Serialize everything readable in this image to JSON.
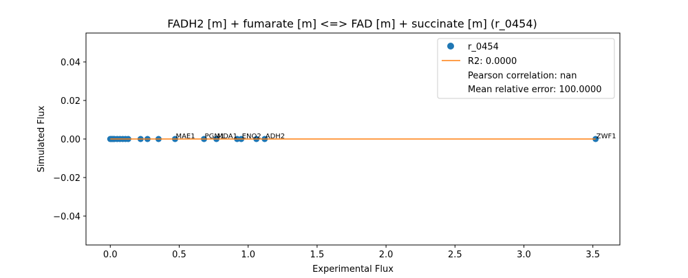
{
  "chart_data": {
    "type": "scatter",
    "title": "FADH2 [m] + fumarate [m] <=> FAD [m] + succinate [m] (r_0454)",
    "xlabel": "Experimental Flux",
    "ylabel": "Simulated Flux",
    "xlim": [
      -0.176,
      3.696
    ],
    "ylim": [
      -0.055,
      0.055
    ],
    "xticks": [
      "0.0",
      "0.5",
      "1.0",
      "1.5",
      "2.0",
      "2.5",
      "3.0",
      "3.5"
    ],
    "xtick_values": [
      0.0,
      0.5,
      1.0,
      1.5,
      2.0,
      2.5,
      3.0,
      3.5
    ],
    "yticks": [
      "−0.04",
      "−0.02",
      "0.00",
      "0.02",
      "0.04"
    ],
    "ytick_values": [
      -0.04,
      -0.02,
      0.0,
      0.02,
      0.04
    ],
    "grid": false,
    "legend_position": "top-right",
    "colors": {
      "points": "#1f77b4",
      "fit_line": "#ff7f0e"
    },
    "series": [
      {
        "name": "r_0454",
        "kind": "scatter",
        "points": [
          {
            "x": 0.0,
            "y": 0.0,
            "label": ""
          },
          {
            "x": 0.01,
            "y": 0.0,
            "label": ""
          },
          {
            "x": 0.02,
            "y": 0.0,
            "label": ""
          },
          {
            "x": 0.03,
            "y": 0.0,
            "label": ""
          },
          {
            "x": 0.05,
            "y": 0.0,
            "label": ""
          },
          {
            "x": 0.07,
            "y": 0.0,
            "label": ""
          },
          {
            "x": 0.09,
            "y": 0.0,
            "label": ""
          },
          {
            "x": 0.11,
            "y": 0.0,
            "label": ""
          },
          {
            "x": 0.13,
            "y": 0.0,
            "label": ""
          },
          {
            "x": 0.22,
            "y": 0.0,
            "label": ""
          },
          {
            "x": 0.27,
            "y": 0.0,
            "label": ""
          },
          {
            "x": 0.35,
            "y": 0.0,
            "label": ""
          },
          {
            "x": 0.47,
            "y": 0.0,
            "label": "MAE1"
          },
          {
            "x": 0.68,
            "y": 0.0,
            "label": "PGM1"
          },
          {
            "x": 0.77,
            "y": 0.0,
            "label": "MDA1"
          },
          {
            "x": 0.92,
            "y": 0.0,
            "label": ""
          },
          {
            "x": 0.95,
            "y": 0.0,
            "label": "ENO2"
          },
          {
            "x": 1.06,
            "y": 0.0,
            "label": ""
          },
          {
            "x": 1.12,
            "y": 0.0,
            "label": "ADH2"
          },
          {
            "x": 3.52,
            "y": 0.0,
            "label": "ZWF1"
          }
        ]
      },
      {
        "name": "R2: 0.0000",
        "kind": "line",
        "x": [
          0.0,
          3.52
        ],
        "y": [
          0.0,
          0.0
        ]
      }
    ],
    "legend": {
      "marker_entry": "r_0454",
      "line_entry": "R2: 0.0000",
      "text_entries": [
        "Pearson correlation: nan",
        "Mean relative error: 100.0000"
      ]
    }
  }
}
